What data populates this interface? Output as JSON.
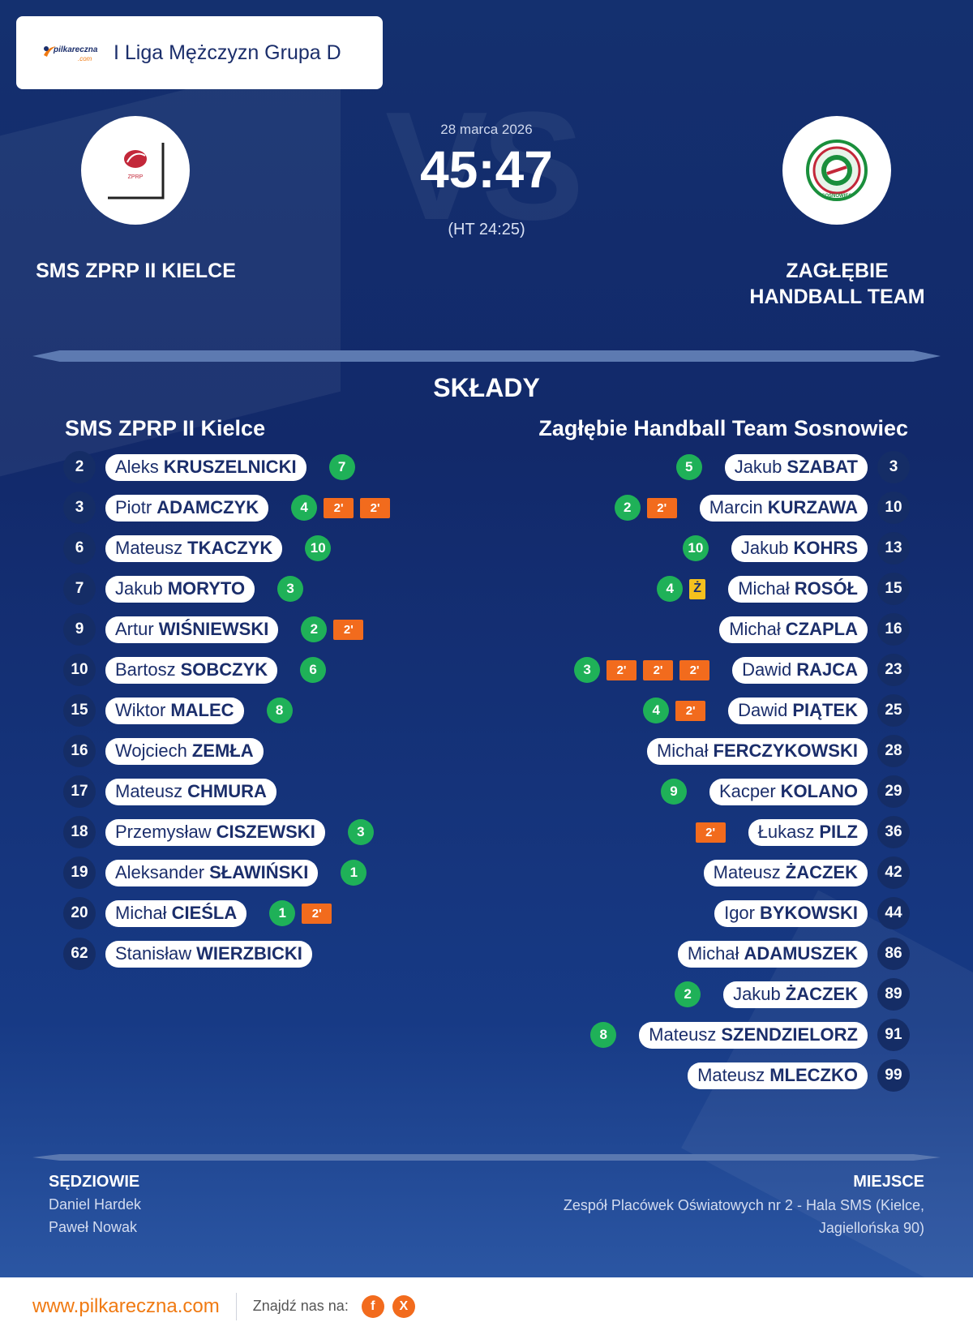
{
  "header": {
    "brand_name": "pilkareczna",
    "brand_domain": ".com",
    "competition": "I Liga Mężczyzn Grupa D"
  },
  "match": {
    "date": "28 marca 2026",
    "score": "45:47",
    "halftime": "(HT 24:25)",
    "vs_watermark": "VS"
  },
  "home_team": {
    "name": "SMS ZPRP II KIELCE",
    "logo_text": "ZPRP"
  },
  "away_team": {
    "name_line1": "ZAGŁĘBIE",
    "name_line2": "HANDBALL TEAM",
    "logo_text": "SOSNOWIEC"
  },
  "lineups": {
    "title": "SKŁADY",
    "home": {
      "title": "SMS ZPRP II Kielce",
      "players": [
        {
          "number": "2",
          "first": "Aleks",
          "last": "KRUSZELNICKI",
          "goals": "7",
          "suspensions": [],
          "yellow": false
        },
        {
          "number": "3",
          "first": "Piotr",
          "last": "ADAMCZYK",
          "goals": "4",
          "suspensions": [
            "2'",
            "2'"
          ],
          "yellow": false
        },
        {
          "number": "6",
          "first": "Mateusz",
          "last": "TKACZYK",
          "goals": "10",
          "suspensions": [],
          "yellow": false
        },
        {
          "number": "7",
          "first": "Jakub",
          "last": "MORYTO",
          "goals": "3",
          "suspensions": [],
          "yellow": false
        },
        {
          "number": "9",
          "first": "Artur",
          "last": "WIŚNIEWSKI",
          "goals": "2",
          "suspensions": [
            "2'"
          ],
          "yellow": false
        },
        {
          "number": "10",
          "first": "Bartosz",
          "last": "SOBCZYK",
          "goals": "6",
          "suspensions": [],
          "yellow": false
        },
        {
          "number": "15",
          "first": "Wiktor",
          "last": "MALEC",
          "goals": "8",
          "suspensions": [],
          "yellow": false
        },
        {
          "number": "16",
          "first": "Wojciech",
          "last": "ZEMŁA",
          "goals": "",
          "suspensions": [],
          "yellow": false
        },
        {
          "number": "17",
          "first": "Mateusz",
          "last": "CHMURA",
          "goals": "",
          "suspensions": [],
          "yellow": false
        },
        {
          "number": "18",
          "first": "Przemysław",
          "last": "CISZEWSKI",
          "goals": "3",
          "suspensions": [],
          "yellow": false
        },
        {
          "number": "19",
          "first": "Aleksander",
          "last": "SŁAWIŃSKI",
          "goals": "1",
          "suspensions": [],
          "yellow": false
        },
        {
          "number": "20",
          "first": "Michał",
          "last": "CIEŚLA",
          "goals": "1",
          "suspensions": [
            "2'"
          ],
          "yellow": false
        },
        {
          "number": "62",
          "first": "Stanisław",
          "last": "WIERZBICKI",
          "goals": "",
          "suspensions": [],
          "yellow": false
        }
      ]
    },
    "away": {
      "title": "Zagłębie Handball Team Sosnowiec",
      "players": [
        {
          "number": "3",
          "first": "Jakub",
          "last": "SZABAT",
          "goals": "5",
          "suspensions": [],
          "yellow": false
        },
        {
          "number": "10",
          "first": "Marcin",
          "last": "KURZAWA",
          "goals": "2",
          "suspensions": [
            "2'"
          ],
          "yellow": false
        },
        {
          "number": "13",
          "first": "Jakub",
          "last": "KOHRS",
          "goals": "10",
          "suspensions": [],
          "yellow": false
        },
        {
          "number": "15",
          "first": "Michał",
          "last": "ROSÓŁ",
          "goals": "4",
          "suspensions": [],
          "yellow": true,
          "yellow_label": "Ż"
        },
        {
          "number": "16",
          "first": "Michał",
          "last": "CZAPLA",
          "goals": "",
          "suspensions": [],
          "yellow": false
        },
        {
          "number": "23",
          "first": "Dawid",
          "last": "RAJCA",
          "goals": "3",
          "suspensions": [
            "2'",
            "2'",
            "2'"
          ],
          "yellow": false
        },
        {
          "number": "25",
          "first": "Dawid",
          "last": "PIĄTEK",
          "goals": "4",
          "suspensions": [
            "2'"
          ],
          "yellow": false
        },
        {
          "number": "28",
          "first": "Michał",
          "last": "FERCZYKOWSKI",
          "goals": "",
          "suspensions": [],
          "yellow": false
        },
        {
          "number": "29",
          "first": "Kacper",
          "last": "KOLANO",
          "goals": "9",
          "suspensions": [],
          "yellow": false
        },
        {
          "number": "36",
          "first": "Łukasz",
          "last": "PILZ",
          "goals": "",
          "suspensions": [
            "2'"
          ],
          "yellow": false
        },
        {
          "number": "42",
          "first": "Mateusz",
          "last": "ŻACZEK",
          "goals": "",
          "suspensions": [],
          "yellow": false
        },
        {
          "number": "44",
          "first": "Igor",
          "last": "BYKOWSKI",
          "goals": "",
          "suspensions": [],
          "yellow": false
        },
        {
          "number": "86",
          "first": "Michał",
          "last": "ADAMUSZEK",
          "goals": "",
          "suspensions": [],
          "yellow": false
        },
        {
          "number": "89",
          "first": "Jakub",
          "last": "ŻACZEK",
          "goals": "2",
          "suspensions": [],
          "yellow": false
        },
        {
          "number": "91",
          "first": "Mateusz",
          "last": "SZENDZIELORZ",
          "goals": "8",
          "suspensions": [],
          "yellow": false
        },
        {
          "number": "99",
          "first": "Mateusz",
          "last": "MLECZKO",
          "goals": "",
          "suspensions": [],
          "yellow": false
        }
      ]
    }
  },
  "officials": {
    "label": "SĘDZIOWIE",
    "referees": [
      "Daniel Hardek",
      "Paweł Nowak"
    ]
  },
  "venue": {
    "label": "MIEJSCE",
    "line1": "Zespół Placówek Oświatowych nr 2 - Hala SMS (Kielce,",
    "line2": "Jagiellońska 90)"
  },
  "footer": {
    "url": "www.pilkareczna.com",
    "find_us": "Znajdź nas na:",
    "social": [
      {
        "icon": "facebook-icon",
        "glyph": "f"
      },
      {
        "icon": "x-icon",
        "glyph": "X"
      }
    ]
  },
  "colors": {
    "background": "#12296a",
    "goal": "#1fb158",
    "suspension": "#f26b1d",
    "yellow_card": "#f5c11e",
    "brand": "#f07a12"
  }
}
